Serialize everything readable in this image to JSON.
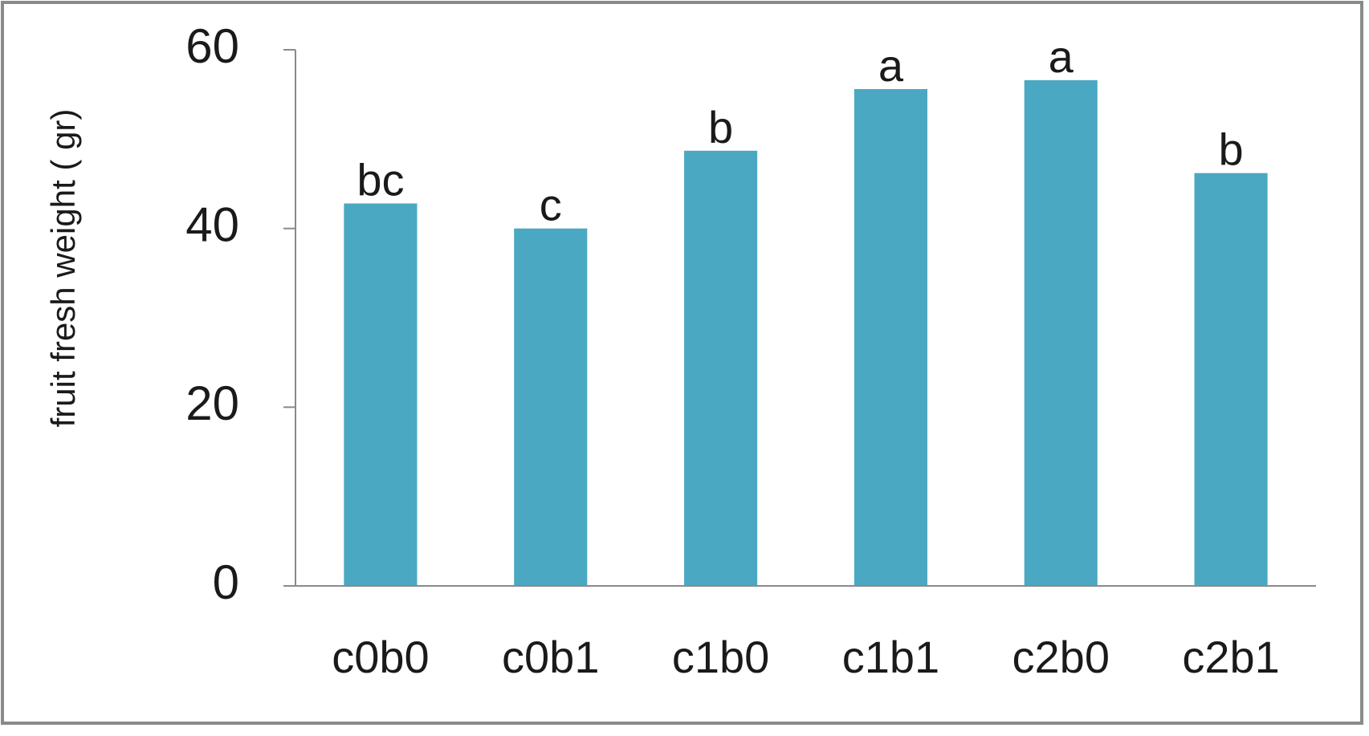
{
  "chart_data": {
    "type": "bar",
    "y_label": "fruit fresh weight ( gr)",
    "categories": [
      "c0b0",
      "c0b1",
      "c1b0",
      "c1b1",
      "c2b0",
      "c2b1"
    ],
    "values": [
      42.8,
      40,
      48.7,
      55.6,
      56.6,
      46.2
    ],
    "annotations": [
      "bc",
      "c",
      "b",
      "a",
      "a",
      "b"
    ],
    "color": "#4aa8c2",
    "ylim": [
      0,
      60
    ],
    "yticks": [
      0,
      20,
      40,
      60
    ],
    "grid": false
  }
}
